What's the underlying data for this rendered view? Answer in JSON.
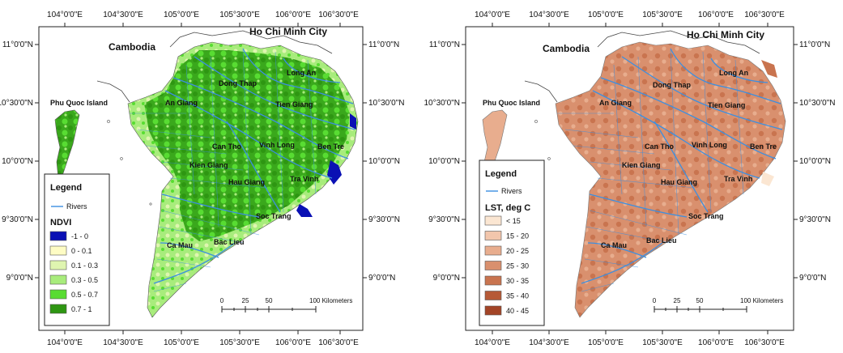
{
  "lon_labels": [
    "104°0'0\"E",
    "104°30'0\"E",
    "105°0'0\"E",
    "105°30'0\"E",
    "106°0'0\"E",
    "106°30'0\"E"
  ],
  "lat_labels": [
    "11°0'0\"N",
    "10°30'0\"N",
    "10°0'0\"N",
    "9°30'0\"N",
    "9°0'0\"N"
  ],
  "places": {
    "cambodia": "Cambodia",
    "hcmc": "Ho Chi Minh City",
    "phu_quoc": "Phu Quoc Island",
    "long_an": "Long An",
    "dong_thap": "Dong Thap",
    "an_giang": "An Giang",
    "tien_giang": "Tien Giang",
    "can_tho": "Can Tho",
    "vinh_long": "Vinh Long",
    "ben_tre": "Ben Tre",
    "kien_giang": "Kien Giang",
    "hau_giang": "Hau Giang",
    "tra_vinh": "Tra Vinh",
    "soc_trang": "Soc Trang",
    "bac_lieu": "Bac Lieu",
    "ca_mau": "Ca Mau"
  },
  "scale": {
    "ticks": [
      "0",
      "25",
      "50"
    ],
    "end_label": "100 Kilometers"
  },
  "maps": [
    {
      "legend": {
        "title": "Legend",
        "rivers_label": "Rivers",
        "variable": "NDVI",
        "classes": [
          {
            "label": "-1 - 0",
            "color": "#0a10b4"
          },
          {
            "label": "0 - 0.1",
            "color": "#fefcc4"
          },
          {
            "label": "0.1 - 0.3",
            "color": "#dff5b0"
          },
          {
            "label": "0.3 - 0.5",
            "color": "#a8ec7c"
          },
          {
            "label": "0.5 - 0.7",
            "color": "#58dc32"
          },
          {
            "label": "0.7 - 1",
            "color": "#2e9612"
          }
        ]
      }
    },
    {
      "legend": {
        "title": "Legend",
        "rivers_label": "Rivers",
        "variable": "LST, deg C",
        "classes": [
          {
            "label": "< 15",
            "color": "#fbe6d2"
          },
          {
            "label": "15 - 20",
            "color": "#f2c6ac"
          },
          {
            "label": "20 - 25",
            "color": "#e8ad8e"
          },
          {
            "label": "25 - 30",
            "color": "#d9906e"
          },
          {
            "label": "30 - 35",
            "color": "#c9744f"
          },
          {
            "label": "35 - 40",
            "color": "#b65a36"
          },
          {
            "label": "40 - 45",
            "color": "#a34426"
          }
        ]
      }
    }
  ],
  "colors": {
    "river": "#3c8fe0",
    "border": "#444444"
  }
}
